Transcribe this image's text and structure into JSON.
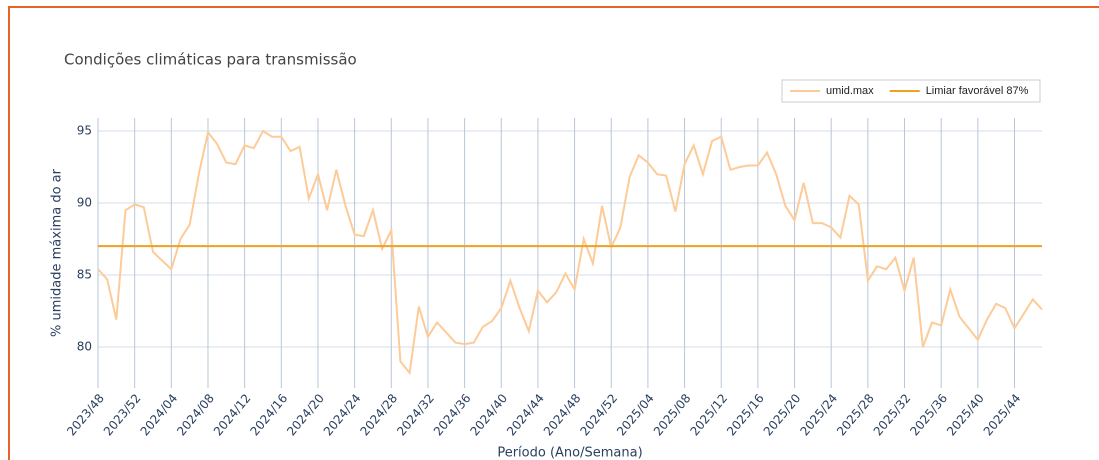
{
  "chart_data": {
    "type": "line",
    "title": "Condições climáticas para transmissão",
    "x_label": "Período (Ano/Semana)",
    "y_label": "% umidade máxima do ar",
    "categories": [
      "2023/48",
      null,
      null,
      null,
      "2023/52",
      null,
      null,
      null,
      "2024/04",
      null,
      null,
      null,
      "2024/08",
      null,
      null,
      null,
      "2024/12",
      null,
      null,
      null,
      "2024/16",
      null,
      null,
      null,
      "2024/20",
      null,
      null,
      null,
      "2024/24",
      null,
      null,
      null,
      "2024/28",
      null,
      null,
      null,
      "2024/32",
      null,
      null,
      null,
      "2024/36",
      null,
      null,
      null,
      "2024/40",
      null,
      null,
      null,
      "2024/44",
      null,
      null,
      null,
      "2024/48",
      null,
      null,
      null,
      "2024/52",
      null,
      null,
      null,
      "2025/04",
      null,
      null,
      null,
      "2025/08",
      null,
      null,
      null,
      "2025/12",
      null,
      null,
      null,
      "2025/16",
      null,
      null,
      null,
      "2025/20",
      null,
      null,
      null,
      "2025/24",
      null,
      null,
      null,
      "2025/28",
      null,
      null,
      null,
      "2025/32",
      null,
      null,
      null,
      "2025/36",
      null,
      null,
      null,
      "2025/40",
      null,
      null,
      null,
      "2025/44",
      null,
      null,
      null
    ],
    "series": [
      {
        "name": "umid.max",
        "color": "#fdcb98",
        "values": [
          85.4,
          84.7,
          81.9,
          89.5,
          89.9,
          89.7,
          86.6,
          86.0,
          85.4,
          87.5,
          88.5,
          92.0,
          94.9,
          94.1,
          92.8,
          92.7,
          94.0,
          93.8,
          95.0,
          94.6,
          94.6,
          93.6,
          93.9,
          90.3,
          92.0,
          89.5,
          92.3,
          89.8,
          87.8,
          87.7,
          89.5,
          86.8,
          88.1,
          79.0,
          78.2,
          82.8,
          80.7,
          81.7,
          81.0,
          80.3,
          80.2,
          80.3,
          81.4,
          81.8,
          82.7,
          84.6,
          82.7,
          81.1,
          83.9,
          83.1,
          83.8,
          85.1,
          84.0,
          87.5,
          85.8,
          89.8,
          86.9,
          88.3,
          91.8,
          93.3,
          92.8,
          92.0,
          91.9,
          89.4,
          92.7,
          94.0,
          92.0,
          94.3,
          94.6,
          92.3,
          92.5,
          92.6,
          92.6,
          93.5,
          92.0,
          89.8,
          88.8,
          91.4,
          88.6,
          88.6,
          88.3,
          87.6,
          90.5,
          89.9,
          84.6,
          85.6,
          85.4,
          86.2,
          83.9,
          86.2,
          80.0,
          81.7,
          81.5,
          84.0,
          82.1,
          81.3,
          80.5,
          81.9,
          83.0,
          82.7,
          81.3,
          82.3,
          83.3,
          82.6
        ]
      }
    ],
    "threshold": {
      "name": "Limiar favorável 87%",
      "value": 87,
      "color": "#f0a020"
    },
    "ylim": [
      77.15,
      95.9
    ],
    "yticks": [
      80,
      85,
      90,
      95
    ],
    "grid": true,
    "legend": "top-right"
  }
}
